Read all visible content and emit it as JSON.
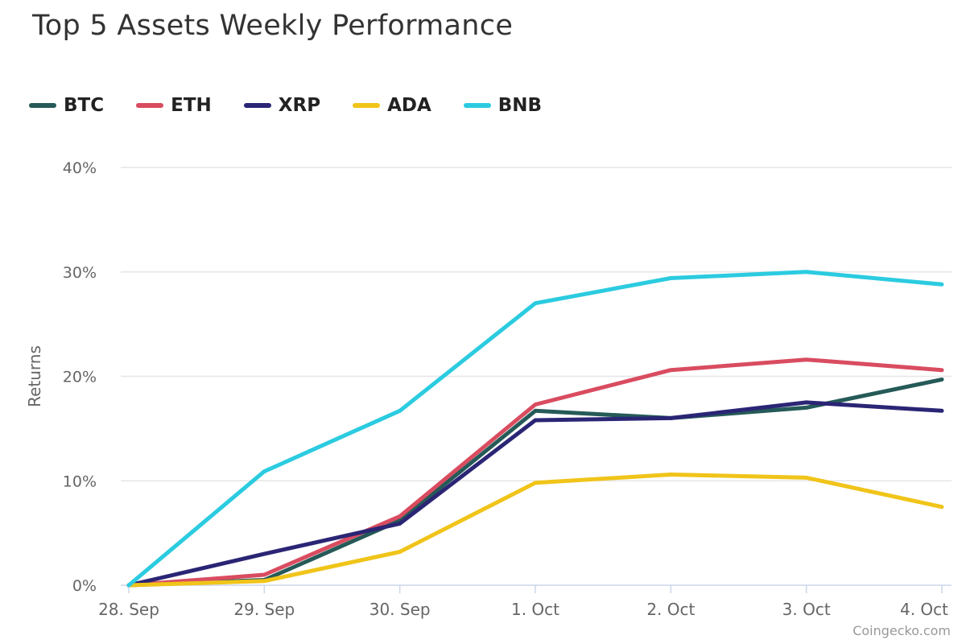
{
  "chart_data": {
    "type": "line",
    "title": "Top 5 Assets Weekly Performance",
    "xlabel": "",
    "ylabel": "Returns",
    "categories": [
      "28. Sep",
      "29. Sep",
      "30. Sep",
      "1. Oct",
      "2. Oct",
      "3. Oct",
      "4. Oct"
    ],
    "y_ticks": [
      "0%",
      "10%",
      "20%",
      "30%",
      "40%"
    ],
    "ylim": [
      0,
      40
    ],
    "grid": true,
    "legend_position": "top-left",
    "series": [
      {
        "name": "BTC",
        "color": "#255a58",
        "values": [
          0,
          0.5,
          6.2,
          16.7,
          16.0,
          17.0,
          19.7
        ]
      },
      {
        "name": "ETH",
        "color": "#d94c60",
        "values": [
          0,
          1.0,
          6.6,
          17.3,
          20.6,
          21.6,
          20.6
        ]
      },
      {
        "name": "XRP",
        "color": "#2b2575",
        "values": [
          0,
          3.0,
          5.9,
          15.8,
          16.0,
          17.5,
          16.7
        ]
      },
      {
        "name": "ADA",
        "color": "#f0c419",
        "values": [
          0,
          0.4,
          3.2,
          9.8,
          10.6,
          10.3,
          7.5
        ]
      },
      {
        "name": "BNB",
        "color": "#2bcbe0",
        "values": [
          0,
          10.9,
          16.7,
          27.0,
          29.4,
          30.0,
          28.8
        ]
      }
    ]
  },
  "credit": "Coingecko.com"
}
